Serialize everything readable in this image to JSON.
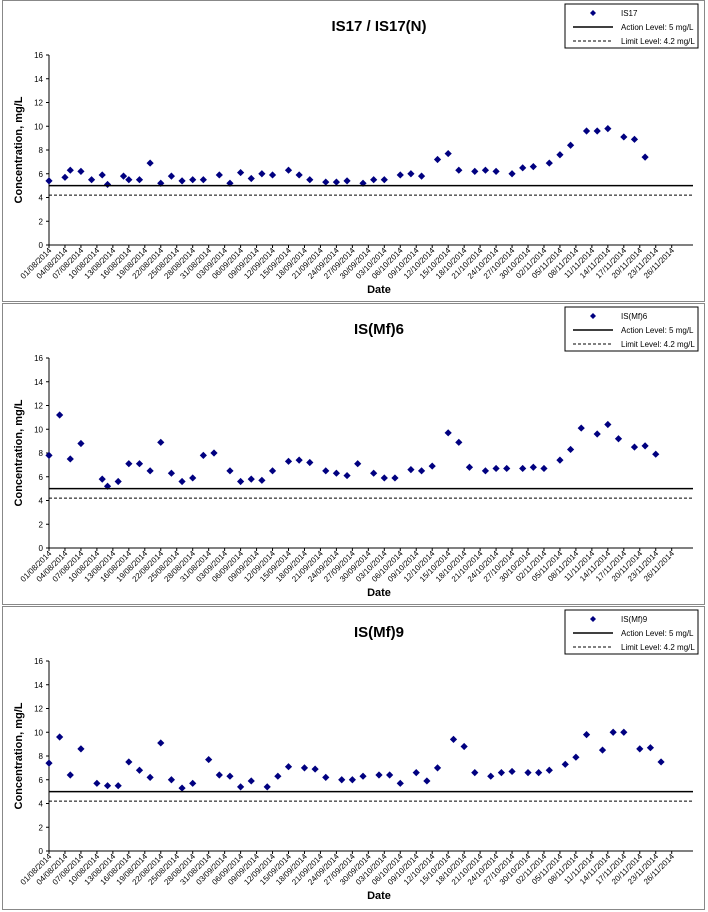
{
  "chart_data": [
    {
      "type": "scatter",
      "title": "IS17 / IS17(N)",
      "xlabel": "Date",
      "ylabel": "Concentration, mg/L",
      "ylim": [
        0,
        16
      ],
      "yticks": [
        0,
        2,
        4,
        6,
        8,
        10,
        12,
        14,
        16
      ],
      "xlim": [
        "01/08/2014",
        "30/11/2014"
      ],
      "xtick_labels": [
        "01/08/2014",
        "04/08/2014",
        "07/08/2014",
        "10/08/2014",
        "13/08/2014",
        "16/08/2014",
        "19/08/2014",
        "22/08/2014",
        "25/08/2014",
        "28/08/2014",
        "31/08/2014",
        "03/09/2014",
        "06/09/2014",
        "09/09/2014",
        "12/09/2014",
        "15/09/2014",
        "18/09/2014",
        "21/09/2014",
        "24/09/2014",
        "27/09/2014",
        "30/09/2014",
        "03/10/2014",
        "06/10/2014",
        "09/10/2014",
        "12/10/2014",
        "15/10/2014",
        "18/10/2014",
        "21/10/2014",
        "24/10/2014",
        "27/10/2014",
        "30/10/2014",
        "02/11/2014",
        "05/11/2014",
        "08/11/2014",
        "11/11/2014",
        "14/11/2014",
        "17/11/2014",
        "20/11/2014",
        "23/11/2014",
        "26/11/2014"
      ],
      "grid": false,
      "legend_position": "top-right",
      "series": [
        {
          "name": "IS17",
          "color": "#000080",
          "marker": "diamond",
          "points": [
            [
              "01/08/2014",
              5.4
            ],
            [
              "04/08/2014",
              5.7
            ],
            [
              "05/08/2014",
              6.3
            ],
            [
              "07/08/2014",
              6.2
            ],
            [
              "09/08/2014",
              5.5
            ],
            [
              "11/08/2014",
              5.9
            ],
            [
              "12/08/2014",
              5.1
            ],
            [
              "15/08/2014",
              5.8
            ],
            [
              "16/08/2014",
              5.5
            ],
            [
              "18/08/2014",
              5.5
            ],
            [
              "20/08/2014",
              6.9
            ],
            [
              "22/08/2014",
              5.2
            ],
            [
              "24/08/2014",
              5.8
            ],
            [
              "26/08/2014",
              5.4
            ],
            [
              "28/08/2014",
              5.5
            ],
            [
              "30/08/2014",
              5.5
            ],
            [
              "02/09/2014",
              5.9
            ],
            [
              "04/09/2014",
              5.2
            ],
            [
              "06/09/2014",
              6.1
            ],
            [
              "08/09/2014",
              5.6
            ],
            [
              "10/09/2014",
              6.0
            ],
            [
              "12/09/2014",
              5.9
            ],
            [
              "15/09/2014",
              6.3
            ],
            [
              "17/09/2014",
              5.9
            ],
            [
              "19/09/2014",
              5.5
            ],
            [
              "22/09/2014",
              5.3
            ],
            [
              "24/09/2014",
              5.3
            ],
            [
              "26/09/2014",
              5.4
            ],
            [
              "29/09/2014",
              5.2
            ],
            [
              "01/10/2014",
              5.5
            ],
            [
              "03/10/2014",
              5.5
            ],
            [
              "06/10/2014",
              5.9
            ],
            [
              "08/10/2014",
              6.0
            ],
            [
              "10/10/2014",
              5.8
            ],
            [
              "13/10/2014",
              7.2
            ],
            [
              "15/10/2014",
              7.7
            ],
            [
              "17/10/2014",
              6.3
            ],
            [
              "20/10/2014",
              6.2
            ],
            [
              "22/10/2014",
              6.3
            ],
            [
              "24/10/2014",
              6.2
            ],
            [
              "27/10/2014",
              6.0
            ],
            [
              "29/10/2014",
              6.5
            ],
            [
              "31/10/2014",
              6.6
            ],
            [
              "03/11/2014",
              6.9
            ],
            [
              "05/11/2014",
              7.6
            ],
            [
              "07/11/2014",
              8.4
            ],
            [
              "10/11/2014",
              9.6
            ],
            [
              "12/11/2014",
              9.6
            ],
            [
              "14/11/2014",
              9.8
            ],
            [
              "17/11/2014",
              9.1
            ],
            [
              "19/11/2014",
              8.9
            ],
            [
              "21/11/2014",
              7.4
            ]
          ]
        },
        {
          "name": "Action Level: 5 mg/L",
          "color": "#000000",
          "style": "solid",
          "value": 5.0
        },
        {
          "name": "Limit Level: 4.2 mg/L",
          "color": "#000000",
          "style": "dashed",
          "value": 4.2
        }
      ]
    },
    {
      "type": "scatter",
      "title": "IS(Mf)6",
      "xlabel": "Date",
      "ylabel": "Concentration, mg/L",
      "ylim": [
        0,
        16
      ],
      "yticks": [
        0,
        2,
        4,
        6,
        8,
        10,
        12,
        14,
        16
      ],
      "xlim": [
        "01/08/2014",
        "30/11/2014"
      ],
      "xtick_labels": [
        "01/08/2014",
        "04/08/2014",
        "07/08/2014",
        "10/08/2014",
        "13/08/2014",
        "16/08/2014",
        "19/08/2014",
        "22/08/2014",
        "25/08/2014",
        "28/08/2014",
        "31/08/2014",
        "03/09/2014",
        "06/09/2014",
        "09/09/2014",
        "12/09/2014",
        "15/09/2014",
        "18/09/2014",
        "21/09/2014",
        "24/09/2014",
        "27/09/2014",
        "30/09/2014",
        "03/10/2014",
        "06/10/2014",
        "09/10/2014",
        "12/10/2014",
        "15/10/2014",
        "18/10/2014",
        "21/10/2014",
        "24/10/2014",
        "27/10/2014",
        "30/10/2014",
        "02/11/2014",
        "05/11/2014",
        "08/11/2014",
        "11/11/2014",
        "14/11/2014",
        "17/11/2014",
        "20/11/2014",
        "23/11/2014",
        "26/11/2014"
      ],
      "grid": false,
      "legend_position": "top-right",
      "series": [
        {
          "name": "IS(Mf)6",
          "color": "#000080",
          "marker": "diamond",
          "points": [
            [
              "01/08/2014",
              7.8
            ],
            [
              "03/08/2014",
              11.2
            ],
            [
              "05/08/2014",
              7.5
            ],
            [
              "07/08/2014",
              8.8
            ],
            [
              "11/08/2014",
              5.8
            ],
            [
              "12/08/2014",
              5.2
            ],
            [
              "14/08/2014",
              5.6
            ],
            [
              "16/08/2014",
              7.1
            ],
            [
              "18/08/2014",
              7.1
            ],
            [
              "20/08/2014",
              6.5
            ],
            [
              "22/08/2014",
              8.9
            ],
            [
              "24/08/2014",
              6.3
            ],
            [
              "26/08/2014",
              5.6
            ],
            [
              "28/08/2014",
              5.9
            ],
            [
              "30/08/2014",
              7.8
            ],
            [
              "01/09/2014",
              8.0
            ],
            [
              "04/09/2014",
              6.5
            ],
            [
              "06/09/2014",
              5.6
            ],
            [
              "08/09/2014",
              5.8
            ],
            [
              "10/09/2014",
              5.7
            ],
            [
              "12/09/2014",
              6.5
            ],
            [
              "15/09/2014",
              7.3
            ],
            [
              "17/09/2014",
              7.4
            ],
            [
              "19/09/2014",
              7.2
            ],
            [
              "22/09/2014",
              6.5
            ],
            [
              "24/09/2014",
              6.3
            ],
            [
              "26/09/2014",
              6.1
            ],
            [
              "28/09/2014",
              7.1
            ],
            [
              "01/10/2014",
              6.3
            ],
            [
              "03/10/2014",
              5.9
            ],
            [
              "05/10/2014",
              5.9
            ],
            [
              "08/10/2014",
              6.6
            ],
            [
              "10/10/2014",
              6.5
            ],
            [
              "12/10/2014",
              6.9
            ],
            [
              "15/10/2014",
              9.7
            ],
            [
              "17/10/2014",
              8.9
            ],
            [
              "19/10/2014",
              6.8
            ],
            [
              "22/10/2014",
              6.5
            ],
            [
              "24/10/2014",
              6.7
            ],
            [
              "26/10/2014",
              6.7
            ],
            [
              "29/10/2014",
              6.7
            ],
            [
              "31/10/2014",
              6.8
            ],
            [
              "02/11/2014",
              6.7
            ],
            [
              "05/11/2014",
              7.4
            ],
            [
              "07/11/2014",
              8.3
            ],
            [
              "09/11/2014",
              10.1
            ],
            [
              "12/11/2014",
              9.6
            ],
            [
              "14/11/2014",
              10.4
            ],
            [
              "16/11/2014",
              9.2
            ],
            [
              "19/11/2014",
              8.5
            ],
            [
              "21/11/2014",
              8.6
            ],
            [
              "23/11/2014",
              7.9
            ]
          ]
        },
        {
          "name": "Action Level: 5 mg/L",
          "color": "#000000",
          "style": "solid",
          "value": 5.0
        },
        {
          "name": "Limit Level: 4.2 mg/L",
          "color": "#000000",
          "style": "dashed",
          "value": 4.2
        }
      ]
    },
    {
      "type": "scatter",
      "title": "IS(Mf)9",
      "xlabel": "Date",
      "ylabel": "Concentration, mg/L",
      "ylim": [
        0,
        16
      ],
      "yticks": [
        0,
        2,
        4,
        6,
        8,
        10,
        12,
        14,
        16
      ],
      "xlim": [
        "01/08/2014",
        "30/11/2014"
      ],
      "xtick_labels": [
        "01/08/2014",
        "04/08/2014",
        "07/08/2014",
        "10/08/2014",
        "13/08/2014",
        "16/08/2014",
        "19/08/2014",
        "22/08/2014",
        "25/08/2014",
        "28/08/2014",
        "31/08/2014",
        "03/09/2014",
        "06/09/2014",
        "09/09/2014",
        "12/09/2014",
        "15/09/2014",
        "18/09/2014",
        "21/09/2014",
        "24/09/2014",
        "27/09/2014",
        "30/09/2014",
        "03/10/2014",
        "06/10/2014",
        "09/10/2014",
        "12/10/2014",
        "15/10/2014",
        "18/10/2014",
        "21/10/2014",
        "24/10/2014",
        "27/10/2014",
        "30/10/2014",
        "02/11/2014",
        "05/11/2014",
        "08/11/2014",
        "11/11/2014",
        "14/11/2014",
        "17/11/2014",
        "20/11/2014",
        "23/11/2014",
        "26/11/2014"
      ],
      "grid": false,
      "legend_position": "top-right",
      "series": [
        {
          "name": "IS(Mf)9",
          "color": "#000080",
          "marker": "diamond",
          "points": [
            [
              "01/08/2014",
              7.4
            ],
            [
              "03/08/2014",
              9.6
            ],
            [
              "05/08/2014",
              6.4
            ],
            [
              "07/08/2014",
              8.6
            ],
            [
              "10/08/2014",
              5.7
            ],
            [
              "12/08/2014",
              5.5
            ],
            [
              "14/08/2014",
              5.5
            ],
            [
              "16/08/2014",
              7.5
            ],
            [
              "18/08/2014",
              6.8
            ],
            [
              "20/08/2014",
              6.2
            ],
            [
              "22/08/2014",
              9.1
            ],
            [
              "24/08/2014",
              6.0
            ],
            [
              "26/08/2014",
              5.3
            ],
            [
              "28/08/2014",
              5.7
            ],
            [
              "31/08/2014",
              7.7
            ],
            [
              "02/09/2014",
              6.4
            ],
            [
              "04/09/2014",
              6.3
            ],
            [
              "06/09/2014",
              5.4
            ],
            [
              "08/09/2014",
              5.9
            ],
            [
              "11/09/2014",
              5.4
            ],
            [
              "13/09/2014",
              6.3
            ],
            [
              "15/09/2014",
              7.1
            ],
            [
              "18/09/2014",
              7.0
            ],
            [
              "20/09/2014",
              6.9
            ],
            [
              "22/09/2014",
              6.2
            ],
            [
              "25/09/2014",
              6.0
            ],
            [
              "27/09/2014",
              6.0
            ],
            [
              "29/09/2014",
              6.3
            ],
            [
              "02/10/2014",
              6.4
            ],
            [
              "04/10/2014",
              6.4
            ],
            [
              "06/10/2014",
              5.7
            ],
            [
              "09/10/2014",
              6.6
            ],
            [
              "11/10/2014",
              5.9
            ],
            [
              "13/10/2014",
              7.0
            ],
            [
              "16/10/2014",
              9.4
            ],
            [
              "18/10/2014",
              8.8
            ],
            [
              "20/10/2014",
              6.6
            ],
            [
              "23/10/2014",
              6.3
            ],
            [
              "25/10/2014",
              6.6
            ],
            [
              "27/10/2014",
              6.7
            ],
            [
              "30/10/2014",
              6.6
            ],
            [
              "01/11/2014",
              6.6
            ],
            [
              "03/11/2014",
              6.8
            ],
            [
              "06/11/2014",
              7.3
            ],
            [
              "08/11/2014",
              7.9
            ],
            [
              "10/11/2014",
              9.8
            ],
            [
              "13/11/2014",
              8.5
            ],
            [
              "15/11/2014",
              10.0
            ],
            [
              "17/11/2014",
              10.0
            ],
            [
              "20/11/2014",
              8.6
            ],
            [
              "22/11/2014",
              8.7
            ],
            [
              "24/11/2014",
              7.5
            ]
          ]
        },
        {
          "name": "Action Level: 5 mg/L",
          "color": "#000000",
          "style": "solid",
          "value": 5.0
        },
        {
          "name": "Limit Level: 4.2 mg/L",
          "color": "#000000",
          "style": "dashed",
          "value": 4.2
        }
      ]
    }
  ]
}
